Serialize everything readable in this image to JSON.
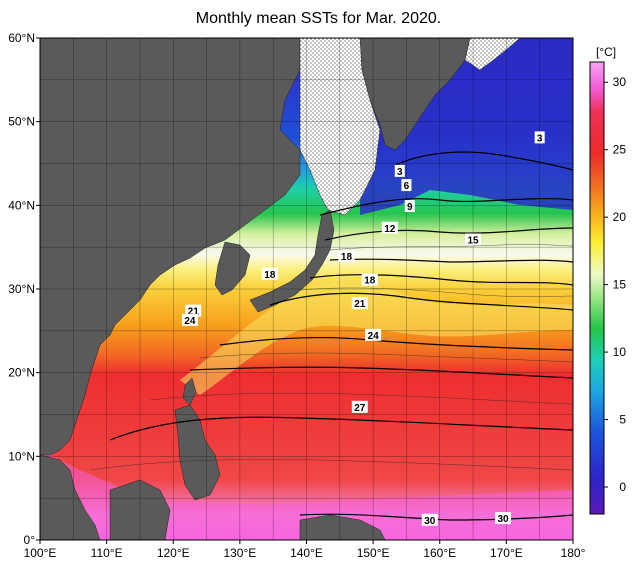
{
  "title": "Monthly mean SSTs for Mar. 2020.",
  "x_ticks": [
    "100°E",
    "110°E",
    "120°E",
    "130°E",
    "140°E",
    "150°E",
    "160°E",
    "170°E",
    "180°"
  ],
  "y_ticks": [
    "60°N",
    "50°N",
    "40°N",
    "30°N",
    "20°N",
    "10°N",
    "0°"
  ],
  "colorbar": {
    "unit": "[°C]",
    "ticks": [
      "30",
      "25",
      "20",
      "15",
      "10",
      "5",
      "0"
    ]
  },
  "contour_labels": [
    {
      "text": "3",
      "lon": 154,
      "lat": 44
    },
    {
      "text": "3",
      "lon": 175,
      "lat": 48
    },
    {
      "text": "6",
      "lon": 155,
      "lat": 42.3
    },
    {
      "text": "9",
      "lon": 155.5,
      "lat": 39.8
    },
    {
      "text": "12",
      "lon": 152.5,
      "lat": 37.2
    },
    {
      "text": "15",
      "lon": 165,
      "lat": 35.8
    },
    {
      "text": "18",
      "lon": 146,
      "lat": 33.8
    },
    {
      "text": "18",
      "lon": 134.5,
      "lat": 31.7
    },
    {
      "text": "18",
      "lon": 149.5,
      "lat": 31
    },
    {
      "text": "21",
      "lon": 148,
      "lat": 28.2
    },
    {
      "text": "21",
      "lon": 123,
      "lat": 27.3
    },
    {
      "text": "24",
      "lon": 122.5,
      "lat": 26.2
    },
    {
      "text": "24",
      "lon": 150,
      "lat": 24.4
    },
    {
      "text": "27",
      "lon": 148,
      "lat": 15.8
    },
    {
      "text": "30",
      "lon": 158.5,
      "lat": 2.3
    },
    {
      "text": "30",
      "lon": 169.5,
      "lat": 2.5
    }
  ],
  "colors": {
    "land": "#5a5a5a",
    "ice": "#ffffff",
    "frame": "#000000"
  }
}
